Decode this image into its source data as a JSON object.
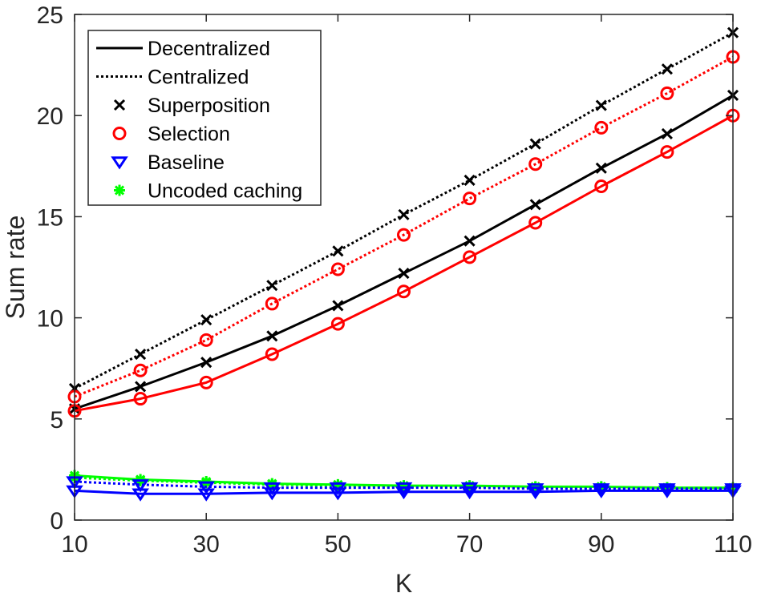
{
  "chart_data": {
    "type": "line",
    "title": "",
    "xlabel": "K",
    "ylabel": "Sum rate",
    "xlim": [
      10,
      110
    ],
    "ylim": [
      0,
      25
    ],
    "grid": false,
    "legend_position": "top-left",
    "x_ticks": [
      "10",
      "30",
      "50",
      "70",
      "90",
      "110"
    ],
    "y_ticks": [
      "0",
      "5",
      "10",
      "15",
      "20",
      "25"
    ],
    "x": [
      10,
      20,
      30,
      40,
      50,
      60,
      70,
      80,
      90,
      100,
      110
    ],
    "legend": [
      {
        "label": "Decentralized",
        "kind": "line",
        "style": "solid",
        "color": "#000000"
      },
      {
        "label": "Centralized",
        "kind": "line",
        "style": "dotted",
        "color": "#000000"
      },
      {
        "label": "Superposition",
        "kind": "marker",
        "marker": "x",
        "color": "#000000"
      },
      {
        "label": "Selection",
        "kind": "marker",
        "marker": "circle",
        "color": "#ff0000"
      },
      {
        "label": "Baseline",
        "kind": "marker",
        "marker": "triangle-down",
        "color": "#0000ff"
      },
      {
        "label": "Uncoded caching",
        "kind": "marker",
        "marker": "asterisk",
        "color": "#00ff00"
      }
    ],
    "series": [
      {
        "name": "Superposition (Centralized)",
        "scheme": "Superposition",
        "mode": "Centralized",
        "color": "#000000",
        "style": "dotted",
        "marker": "x",
        "values": [
          6.5,
          8.2,
          9.9,
          11.6,
          13.3,
          15.1,
          16.8,
          18.6,
          20.5,
          22.3,
          24.1
        ]
      },
      {
        "name": "Selection (Centralized)",
        "scheme": "Selection",
        "mode": "Centralized",
        "color": "#ff0000",
        "style": "dotted",
        "marker": "circle",
        "values": [
          6.1,
          7.4,
          8.9,
          10.7,
          12.4,
          14.1,
          15.9,
          17.6,
          19.4,
          21.1,
          22.9
        ]
      },
      {
        "name": "Superposition (Decentralized)",
        "scheme": "Superposition",
        "mode": "Decentralized",
        "color": "#000000",
        "style": "solid",
        "marker": "x",
        "values": [
          5.5,
          6.6,
          7.8,
          9.1,
          10.6,
          12.2,
          13.8,
          15.6,
          17.4,
          19.1,
          21.0
        ]
      },
      {
        "name": "Selection (Decentralized)",
        "scheme": "Selection",
        "mode": "Decentralized",
        "color": "#ff0000",
        "style": "solid",
        "marker": "circle",
        "values": [
          5.4,
          6.0,
          6.8,
          8.2,
          9.7,
          11.3,
          13.0,
          14.7,
          16.5,
          18.2,
          20.0
        ]
      },
      {
        "name": "Uncoded caching (Decentralized)",
        "scheme": "Uncoded caching",
        "mode": "Decentralized",
        "color": "#00ff00",
        "style": "solid",
        "marker": "asterisk",
        "values": [
          2.2,
          2.0,
          1.9,
          1.8,
          1.75,
          1.7,
          1.7,
          1.65,
          1.65,
          1.6,
          1.6
        ]
      },
      {
        "name": "Uncoded caching (Centralized)",
        "scheme": "Uncoded caching",
        "mode": "Centralized",
        "color": "#00ff00",
        "style": "dotted",
        "marker": "asterisk",
        "values": [
          2.1,
          1.95,
          1.85,
          1.75,
          1.7,
          1.65,
          1.65,
          1.6,
          1.6,
          1.6,
          1.55
        ]
      },
      {
        "name": "Baseline (Centralized)",
        "scheme": "Baseline",
        "mode": "Centralized",
        "color": "#0000ff",
        "style": "dotted",
        "marker": "triangle-down",
        "values": [
          1.9,
          1.75,
          1.65,
          1.6,
          1.6,
          1.6,
          1.6,
          1.55,
          1.55,
          1.55,
          1.55
        ]
      },
      {
        "name": "Baseline (Decentralized)",
        "scheme": "Baseline",
        "mode": "Decentralized",
        "color": "#0000ff",
        "style": "solid",
        "marker": "triangle-down",
        "values": [
          1.45,
          1.3,
          1.3,
          1.35,
          1.35,
          1.4,
          1.4,
          1.4,
          1.45,
          1.45,
          1.45
        ]
      }
    ]
  }
}
